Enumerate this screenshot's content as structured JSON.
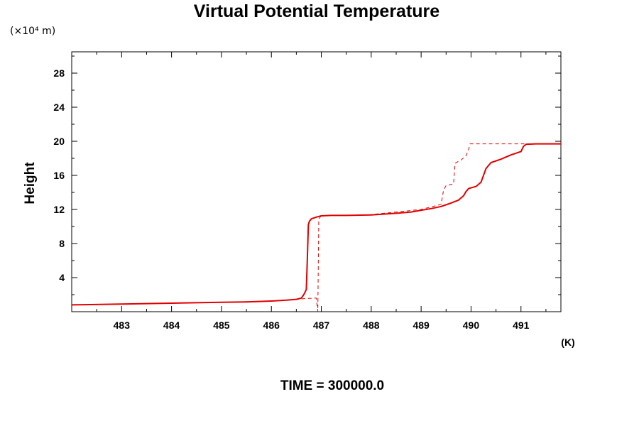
{
  "chart_data": {
    "type": "line",
    "title": "Virtual Potential Temperature",
    "y_unit_label": "(×10⁴ m)",
    "x_unit_label": "(K)",
    "xlabel": "",
    "ylabel": "Height",
    "footer": "TIME = 300000.0",
    "xlim": [
      482.0,
      491.8
    ],
    "ylim": [
      0,
      30.5
    ],
    "x_ticks": [
      483,
      484,
      485,
      486,
      487,
      488,
      489,
      490,
      491
    ],
    "x_tick_labels": [
      "483",
      "484",
      "485",
      "486",
      "487",
      "488",
      "489",
      "490",
      "491"
    ],
    "y_ticks": [
      4,
      8,
      12,
      16,
      20,
      24,
      28
    ],
    "y_tick_labels": [
      "4",
      "8",
      "12",
      "16",
      "20",
      "24",
      "28"
    ],
    "grid": false,
    "series": [
      {
        "style": "solid",
        "color": "#e00000",
        "x": [
          482.0,
          483.0,
          484.0,
          485.0,
          485.5,
          486.0,
          486.3,
          486.5,
          486.6,
          486.65,
          486.7,
          486.72,
          486.74,
          486.76,
          486.8,
          486.9,
          487.0,
          487.2,
          487.5,
          488.0,
          488.5,
          488.8,
          489.0,
          489.2,
          489.4,
          489.6,
          489.75,
          489.85,
          489.9,
          489.95,
          490.1,
          490.2,
          490.3,
          490.4,
          490.6,
          490.8,
          491.0,
          491.05,
          491.1,
          491.3,
          491.5,
          491.8
        ],
        "y": [
          0.8,
          0.9,
          1.0,
          1.1,
          1.15,
          1.25,
          1.35,
          1.45,
          1.6,
          2.0,
          2.6,
          6.0,
          10.2,
          10.6,
          10.9,
          11.1,
          11.25,
          11.3,
          11.3,
          11.35,
          11.55,
          11.7,
          11.9,
          12.1,
          12.35,
          12.75,
          13.1,
          13.6,
          14.1,
          14.45,
          14.7,
          15.2,
          16.8,
          17.5,
          17.9,
          18.4,
          18.8,
          19.4,
          19.65,
          19.7,
          19.7,
          19.7
        ]
      },
      {
        "style": "dashed",
        "color": "#e00000",
        "x": [
          482.0,
          483.0,
          484.0,
          485.0,
          486.0,
          486.5,
          486.7,
          486.9,
          486.93,
          486.95,
          487.0,
          487.2,
          487.5,
          488.0,
          488.5,
          489.0,
          489.2,
          489.4,
          489.45,
          489.5,
          489.65,
          489.68,
          489.7,
          489.8,
          489.9,
          489.95,
          489.98,
          490.2,
          490.5,
          491.0,
          491.5,
          491.8
        ],
        "y": [
          0.8,
          0.9,
          1.0,
          1.1,
          1.25,
          1.45,
          1.55,
          1.6,
          0.0,
          10.9,
          11.25,
          11.3,
          11.3,
          11.4,
          11.7,
          12.0,
          12.3,
          12.6,
          14.3,
          14.8,
          15.0,
          17.4,
          17.5,
          17.8,
          18.3,
          19.0,
          19.7,
          19.7,
          19.7,
          19.7,
          19.7,
          19.7
        ]
      }
    ]
  }
}
